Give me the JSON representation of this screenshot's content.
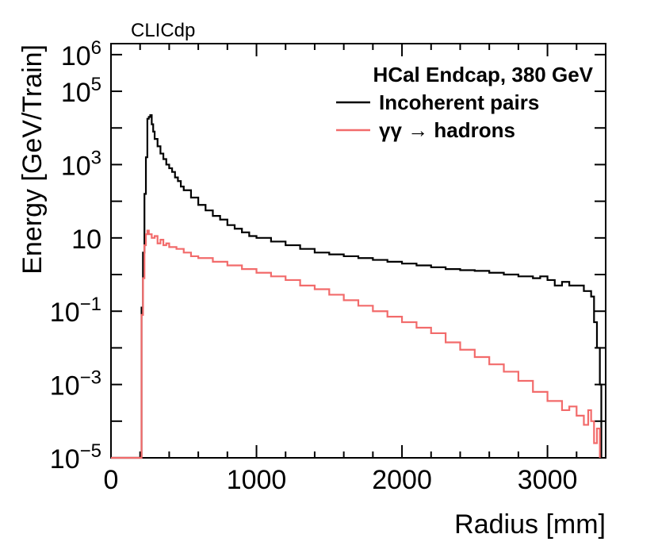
{
  "chart_data": {
    "type": "line",
    "label_top": "CLICdp",
    "legend_title": "HCal Endcap, 380 GeV",
    "xlabel": "Radius [mm]",
    "ylabel": "Energy [GeV/Train]",
    "xlim": [
      0,
      3400
    ],
    "ylim_log10": [
      -5,
      6.3
    ],
    "yscale": "log",
    "x_ticks": [
      {
        "value": 0,
        "label": "0"
      },
      {
        "value": 1000,
        "label": "1000"
      },
      {
        "value": 2000,
        "label": "2000"
      },
      {
        "value": 3000,
        "label": "3000"
      }
    ],
    "y_ticks": [
      {
        "exp": -5,
        "base": "10",
        "sup": "−5"
      },
      {
        "exp": -3,
        "base": "10",
        "sup": "−3"
      },
      {
        "exp": -1,
        "base": "10",
        "sup": "−1"
      },
      {
        "exp": 1,
        "base": "10",
        "sup": ""
      },
      {
        "exp": 3,
        "base": "10",
        "sup": "3"
      },
      {
        "exp": 5,
        "base": "10",
        "sup": "5"
      },
      {
        "exp": 6,
        "base": "10",
        "sup": "6"
      }
    ],
    "series": [
      {
        "name": "Incoherent pairs",
        "color": "#000000",
        "points": [
          [
            0,
            -5
          ],
          [
            200,
            -5
          ],
          [
            210,
            -0.9
          ],
          [
            220,
            0.6
          ],
          [
            230,
            2.2
          ],
          [
            240,
            3.2
          ],
          [
            250,
            4.25
          ],
          [
            260,
            4.3
          ],
          [
            270,
            4.35
          ],
          [
            280,
            4.1
          ],
          [
            290,
            3.9
          ],
          [
            300,
            3.7
          ],
          [
            320,
            3.5
          ],
          [
            340,
            3.3
          ],
          [
            360,
            3.15
          ],
          [
            380,
            3.0
          ],
          [
            400,
            2.9
          ],
          [
            420,
            2.8
          ],
          [
            440,
            2.65
          ],
          [
            460,
            2.55
          ],
          [
            480,
            2.4
          ],
          [
            500,
            2.3
          ],
          [
            550,
            2.1
          ],
          [
            600,
            1.9
          ],
          [
            650,
            1.75
          ],
          [
            700,
            1.6
          ],
          [
            750,
            1.5
          ],
          [
            800,
            1.35
          ],
          [
            850,
            1.25
          ],
          [
            900,
            1.15
          ],
          [
            950,
            1.05
          ],
          [
            1000,
            1.0
          ],
          [
            1100,
            0.9
          ],
          [
            1200,
            0.8
          ],
          [
            1300,
            0.7
          ],
          [
            1400,
            0.6
          ],
          [
            1500,
            0.55
          ],
          [
            1600,
            0.5
          ],
          [
            1700,
            0.45
          ],
          [
            1800,
            0.4
          ],
          [
            1900,
            0.35
          ],
          [
            2000,
            0.3
          ],
          [
            2100,
            0.25
          ],
          [
            2200,
            0.2
          ],
          [
            2300,
            0.15
          ],
          [
            2400,
            0.12
          ],
          [
            2500,
            0.1
          ],
          [
            2600,
            0.05
          ],
          [
            2700,
            0.0
          ],
          [
            2800,
            -0.05
          ],
          [
            2900,
            -0.1
          ],
          [
            2950,
            -0.05
          ],
          [
            3000,
            -0.15
          ],
          [
            3050,
            -0.3
          ],
          [
            3100,
            -0.2
          ],
          [
            3150,
            -0.3
          ],
          [
            3200,
            -0.3
          ],
          [
            3250,
            -0.45
          ],
          [
            3300,
            -0.6
          ],
          [
            3320,
            -1.3
          ],
          [
            3340,
            -2.0
          ],
          [
            3360,
            -3.0
          ],
          [
            3370,
            -5
          ]
        ]
      },
      {
        "name": "γγ  → hadrons",
        "color": "#f26b6b",
        "points": [
          [
            0,
            -5
          ],
          [
            200,
            -5
          ],
          [
            210,
            -1.1
          ],
          [
            220,
            -0.1
          ],
          [
            230,
            0.8
          ],
          [
            240,
            1.1
          ],
          [
            250,
            1.2
          ],
          [
            260,
            1.1
          ],
          [
            280,
            1.0
          ],
          [
            300,
            1.05
          ],
          [
            320,
            0.85
          ],
          [
            340,
            0.95
          ],
          [
            360,
            0.8
          ],
          [
            380,
            0.85
          ],
          [
            400,
            0.75
          ],
          [
            450,
            0.7
          ],
          [
            500,
            0.6
          ],
          [
            550,
            0.5
          ],
          [
            600,
            0.45
          ],
          [
            700,
            0.35
          ],
          [
            800,
            0.25
          ],
          [
            900,
            0.15
          ],
          [
            1000,
            0.05
          ],
          [
            1100,
            -0.05
          ],
          [
            1200,
            -0.15
          ],
          [
            1300,
            -0.3
          ],
          [
            1400,
            -0.4
          ],
          [
            1500,
            -0.55
          ],
          [
            1600,
            -0.7
          ],
          [
            1700,
            -0.85
          ],
          [
            1800,
            -1.0
          ],
          [
            1900,
            -1.15
          ],
          [
            2000,
            -1.3
          ],
          [
            2100,
            -1.45
          ],
          [
            2200,
            -1.6
          ],
          [
            2300,
            -1.85
          ],
          [
            2400,
            -2.05
          ],
          [
            2500,
            -2.25
          ],
          [
            2600,
            -2.45
          ],
          [
            2700,
            -2.65
          ],
          [
            2800,
            -2.9
          ],
          [
            2900,
            -3.2
          ],
          [
            3000,
            -3.45
          ],
          [
            3100,
            -3.7
          ],
          [
            3150,
            -3.6
          ],
          [
            3200,
            -3.85
          ],
          [
            3250,
            -4.1
          ],
          [
            3280,
            -3.7
          ],
          [
            3300,
            -4.0
          ],
          [
            3320,
            -4.6
          ],
          [
            3340,
            -4.2
          ],
          [
            3360,
            -5
          ]
        ]
      }
    ]
  }
}
